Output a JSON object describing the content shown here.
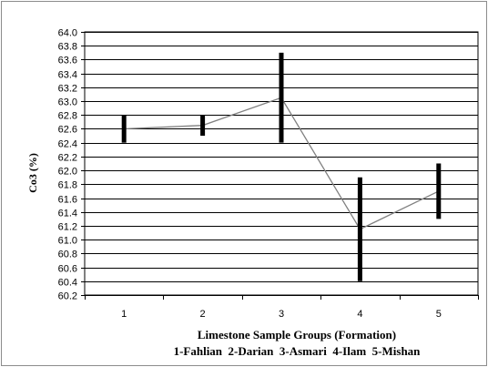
{
  "chart_data": {
    "type": "line",
    "title": "",
    "xlabel": "Limestone Sample Groups (Formation)",
    "xlabel_sub": "1-Fahlian  2-Darian  3-Asmari  4-Ilam  5-Mishan",
    "ylabel": "Co3 (%)",
    "ylim": [
      60.2,
      64.0
    ],
    "ytick_step": 0.2,
    "yticks": [
      "60.2",
      "60.4",
      "60.6",
      "60.8",
      "61.0",
      "61.2",
      "61.4",
      "61.6",
      "61.8",
      "62.0",
      "62.2",
      "62.4",
      "62.6",
      "62.8",
      "63.0",
      "63.2",
      "63.4",
      "63.6",
      "63.8",
      "64.0"
    ],
    "categories": [
      "1",
      "2",
      "3",
      "4",
      "5"
    ],
    "series": [
      {
        "mean": [
          62.6,
          62.65,
          63.05,
          61.15,
          61.7
        ],
        "min": [
          62.4,
          62.5,
          62.4,
          60.4,
          61.3
        ],
        "max": [
          62.8,
          62.8,
          63.7,
          61.9,
          62.1
        ]
      }
    ],
    "grid": true,
    "legend": "none",
    "colors": {
      "line": "#808080",
      "range_bar": "#000000",
      "grid": "#000000"
    }
  }
}
